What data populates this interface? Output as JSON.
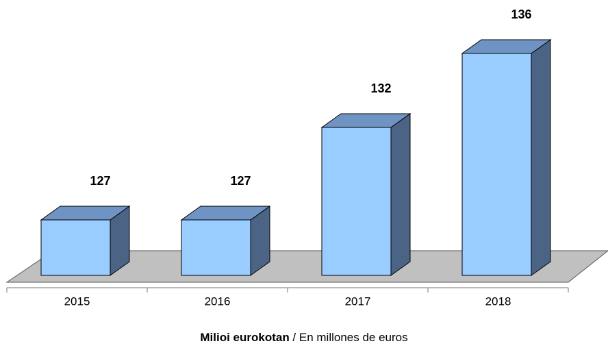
{
  "chart_data": {
    "type": "bar3d",
    "categories": [
      "2015",
      "2016",
      "2017",
      "2018"
    ],
    "values": [
      127,
      127,
      132,
      136
    ],
    "color": "#99ccff",
    "top_color": "#6f94c3",
    "side_color": "#4b6384",
    "floor_color": "#c0c0c0",
    "ylim": [
      124,
      137.5
    ],
    "footer_bold": "Milioi eurokotan",
    "footer": " / En millones de euros"
  }
}
